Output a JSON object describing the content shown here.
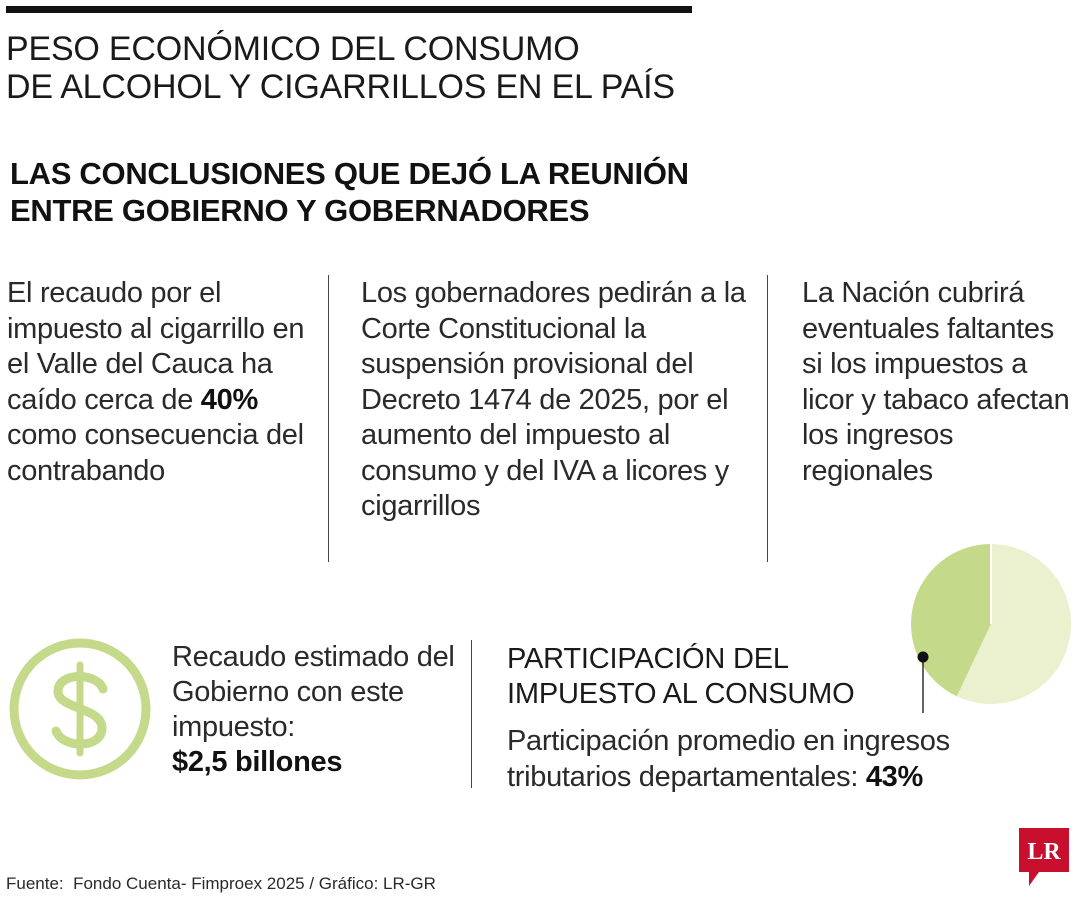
{
  "header": {
    "title_line1": "PESO ECONÓMICO DEL CONSUMO",
    "title_line2": "DE ALCOHOL Y CIGARRILLOS EN EL PAÍS"
  },
  "section": {
    "title_line1": "LAS CONCLUSIONES QUE DEJÓ LA REUNIÓN",
    "title_line2": "ENTRE GOBIERNO Y GOBERNADORES"
  },
  "conclusions": [
    {
      "text_before": "El recaudo por el impuesto al cigarrillo en el Valle del Cauca ha caído cerca de ",
      "highlight": "40%",
      "text_after": " como consecuencia del contrabando"
    },
    {
      "text": "Los gobernadores pedirán a la Corte Constitucional la suspensión provisional del Decreto 1474 de 2025, por el aumento del impuesto al consumo y del IVA a licores y cigarrillos"
    },
    {
      "text": "La Nación cubrirá eventuales faltantes si los impuestos a licor y tabaco afectan los ingresos regionales"
    }
  ],
  "revenue": {
    "icon": "dollar-icon",
    "label": "Recaudo estimado del Gobierno con este impuesto:",
    "value": "$2,5 billones"
  },
  "participation": {
    "title_line1": "PARTICIPACIÓN DEL",
    "title_line2": "IMPUESTO AL CONSUMO",
    "description": "Participación promedio en ingresos tributarios departamentales: ",
    "value": "43%"
  },
  "chart_data": {
    "type": "pie",
    "title": "",
    "slices": [
      {
        "value": 43,
        "color": "#c5d98a"
      },
      {
        "value": 57,
        "color": "#ebf0cf"
      }
    ]
  },
  "footer": {
    "source": "Fuente:  Fondo Cuenta- Fimproex 2025 / Gráfico: LR-GR",
    "logo_text": "LR"
  },
  "colors": {
    "accent_green": "#c5d98a",
    "light_green": "#ebf0cf",
    "logo_red": "#c8102e",
    "text": "#1a1a1a"
  }
}
